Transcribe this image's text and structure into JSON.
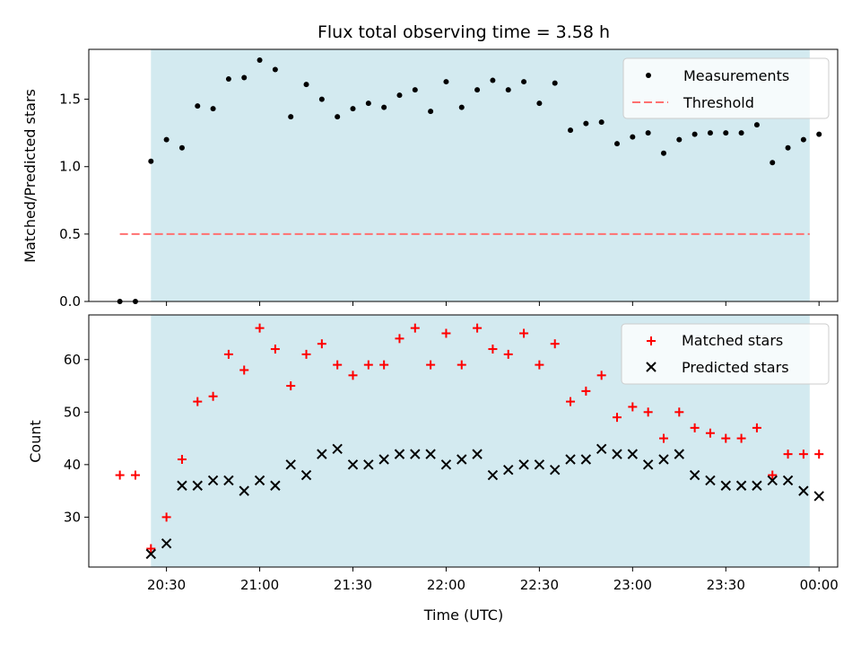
{
  "chart_data": [
    {
      "type": "scatter",
      "title": "Flux total observing time = 3.58 h",
      "ylabel": "Matched/Predicted stars",
      "xlim": [
        "20:05",
        "00:06"
      ],
      "ylim": [
        0,
        1.87
      ],
      "yticks": [
        "0.0",
        "0.5",
        "1.0",
        "1.5"
      ],
      "shaded_interval": [
        "20:25",
        "23:57"
      ],
      "legend_position": "upper right",
      "series": [
        {
          "name": "Measurements",
          "marker": "dot",
          "color": "#000000",
          "x": [
            "20:15",
            "20:20",
            "20:25",
            "20:30",
            "20:35",
            "20:40",
            "20:45",
            "20:50",
            "20:55",
            "21:00",
            "21:05",
            "21:10",
            "21:15",
            "21:20",
            "21:25",
            "21:30",
            "21:35",
            "21:40",
            "21:45",
            "21:50",
            "21:55",
            "22:00",
            "22:05",
            "22:10",
            "22:15",
            "22:20",
            "22:25",
            "22:30",
            "22:35",
            "22:40",
            "22:45",
            "22:50",
            "22:55",
            "23:00",
            "23:05",
            "23:10",
            "23:15",
            "23:20",
            "23:25",
            "23:30",
            "23:35",
            "23:40",
            "23:45",
            "23:50",
            "23:55",
            "24:00"
          ],
          "y": [
            0.0,
            0.0,
            1.04,
            1.2,
            1.14,
            1.45,
            1.43,
            1.65,
            1.66,
            1.79,
            1.72,
            1.37,
            1.61,
            1.5,
            1.37,
            1.43,
            1.47,
            1.44,
            1.53,
            1.57,
            1.41,
            1.63,
            1.44,
            1.57,
            1.64,
            1.57,
            1.63,
            1.47,
            1.62,
            1.27,
            1.32,
            1.33,
            1.17,
            1.22,
            1.25,
            1.1,
            1.2,
            1.24,
            1.25,
            1.25,
            1.25,
            1.31,
            1.03,
            1.14,
            1.2,
            1.24
          ]
        },
        {
          "name": "Threshold",
          "style": "dashed-line",
          "color": "#ff7070",
          "x": [
            "20:15",
            "23:57"
          ],
          "y": [
            0.5,
            0.5
          ]
        }
      ]
    },
    {
      "type": "scatter",
      "ylabel": "Count",
      "xlabel": "Time (UTC)",
      "xlim": [
        "20:05",
        "00:06"
      ],
      "ylim": [
        20.5,
        68.5
      ],
      "yticks": [
        "30",
        "40",
        "50",
        "60"
      ],
      "xticks": [
        "20:30",
        "21:00",
        "21:30",
        "22:00",
        "22:30",
        "23:00",
        "23:30",
        "00:00"
      ],
      "shaded_interval": [
        "20:25",
        "23:57"
      ],
      "legend_position": "upper right",
      "series": [
        {
          "name": "Matched stars",
          "marker": "plus",
          "color": "#ff0000",
          "x": [
            "20:15",
            "20:20",
            "20:25",
            "20:30",
            "20:35",
            "20:40",
            "20:45",
            "20:50",
            "20:55",
            "21:00",
            "21:05",
            "21:10",
            "21:15",
            "21:20",
            "21:25",
            "21:30",
            "21:35",
            "21:40",
            "21:45",
            "21:50",
            "21:55",
            "22:00",
            "22:05",
            "22:10",
            "22:15",
            "22:20",
            "22:25",
            "22:30",
            "22:35",
            "22:40",
            "22:45",
            "22:50",
            "22:55",
            "23:00",
            "23:05",
            "23:10",
            "23:15",
            "23:20",
            "23:25",
            "23:30",
            "23:35",
            "23:40",
            "23:45",
            "23:50",
            "23:55",
            "24:00"
          ],
          "y": [
            38,
            38,
            24,
            30,
            41,
            52,
            53,
            61,
            58,
            66,
            62,
            55,
            61,
            63,
            59,
            57,
            59,
            59,
            64,
            66,
            59,
            65,
            59,
            66,
            62,
            61,
            65,
            59,
            63,
            52,
            54,
            57,
            49,
            51,
            50,
            45,
            50,
            47,
            46,
            45,
            45,
            47,
            38,
            42,
            42,
            42
          ]
        },
        {
          "name": "Predicted stars",
          "marker": "x",
          "color": "#000000",
          "x": [
            "20:25",
            "20:30",
            "20:35",
            "20:40",
            "20:45",
            "20:50",
            "20:55",
            "21:00",
            "21:05",
            "21:10",
            "21:15",
            "21:20",
            "21:25",
            "21:30",
            "21:35",
            "21:40",
            "21:45",
            "21:50",
            "21:55",
            "22:00",
            "22:05",
            "22:10",
            "22:15",
            "22:20",
            "22:25",
            "22:30",
            "22:35",
            "22:40",
            "22:45",
            "22:50",
            "22:55",
            "23:00",
            "23:05",
            "23:10",
            "23:15",
            "23:20",
            "23:25",
            "23:30",
            "23:35",
            "23:40",
            "23:45",
            "23:50",
            "23:55",
            "24:00"
          ],
          "y": [
            23,
            25,
            36,
            36,
            37,
            37,
            35,
            37,
            36,
            40,
            38,
            42,
            43,
            40,
            40,
            41,
            42,
            42,
            42,
            40,
            41,
            42,
            38,
            39,
            40,
            40,
            39,
            41,
            41,
            43,
            42,
            42,
            40,
            41,
            42,
            38,
            37,
            36,
            36,
            36,
            37,
            37,
            35,
            34
          ]
        }
      ]
    }
  ],
  "colors": {
    "shade": "#d3eaf0",
    "threshold": "#ff7070",
    "matched": "#ff0000",
    "predicted": "#000000",
    "measurements": "#000000"
  }
}
